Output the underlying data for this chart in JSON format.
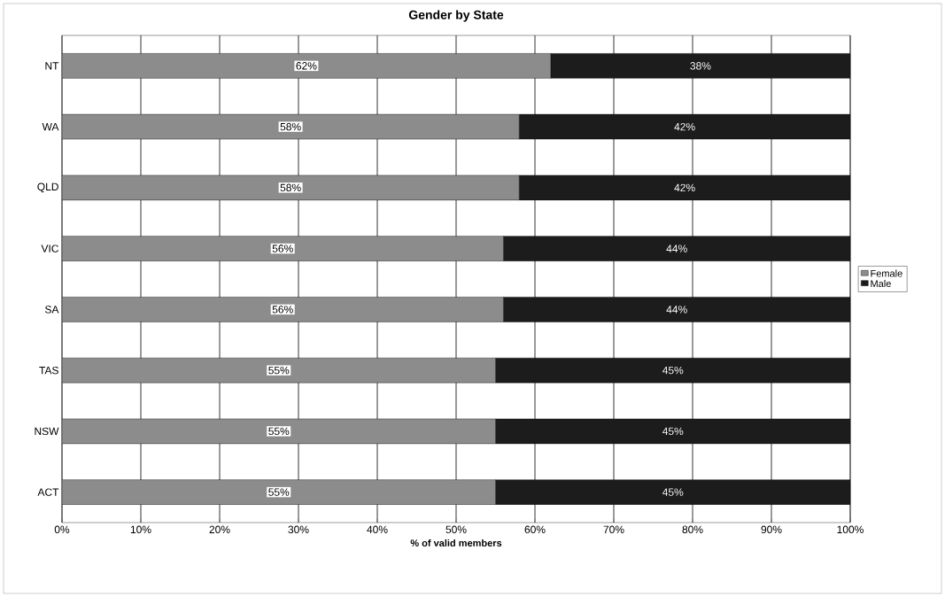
{
  "chart_data": {
    "type": "bar",
    "orientation": "horizontal",
    "stacked": true,
    "title": "Gender by State",
    "xlabel": "% of valid members",
    "categories": [
      "NT",
      "WA",
      "QLD",
      "VIC",
      "SA",
      "TAS",
      "NSW",
      "ACT"
    ],
    "series": [
      {
        "name": "Female",
        "color": "#8c8c8c",
        "values": [
          62,
          58,
          58,
          56,
          56,
          55,
          55,
          55
        ],
        "value_labels": [
          "62%",
          "58%",
          "58%",
          "56%",
          "56%",
          "55%",
          "55%",
          "55%"
        ]
      },
      {
        "name": "Male",
        "color": "#1c1c1c",
        "values": [
          38,
          42,
          42,
          44,
          44,
          45,
          45,
          45
        ],
        "value_labels": [
          "38%",
          "42%",
          "42%",
          "44%",
          "44%",
          "45%",
          "45%",
          "45%"
        ]
      }
    ],
    "xlim": [
      0,
      100
    ],
    "xticks": [
      {
        "value": 0,
        "label": "0%"
      },
      {
        "value": 10,
        "label": "10%"
      },
      {
        "value": 20,
        "label": "20%"
      },
      {
        "value": 30,
        "label": "30%"
      },
      {
        "value": 40,
        "label": "40%"
      },
      {
        "value": 50,
        "label": "50%"
      },
      {
        "value": 60,
        "label": "60%"
      },
      {
        "value": 70,
        "label": "70%"
      },
      {
        "value": 80,
        "label": "80%"
      },
      {
        "value": 90,
        "label": "90%"
      },
      {
        "value": 100,
        "label": "100%"
      }
    ],
    "grid": "x",
    "legend": "right"
  }
}
